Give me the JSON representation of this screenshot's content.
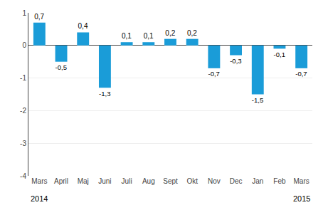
{
  "chart_data": {
    "type": "bar",
    "categories": [
      "Mars",
      "April",
      "Maj",
      "Juni",
      "Juli",
      "Aug",
      "Sept",
      "Okt",
      "Nov",
      "Dec",
      "Jan",
      "Feb",
      "Mars"
    ],
    "values": [
      0.7,
      -0.5,
      0.4,
      -1.3,
      0.1,
      0.1,
      0.2,
      0.2,
      -0.7,
      -0.3,
      -1.5,
      -0.1,
      -0.7
    ],
    "value_labels": [
      "0,7",
      "-0,5",
      "0,4",
      "-1,3",
      "0,1",
      "0,1",
      "0,2",
      "0,2",
      "-0,7",
      "-0,3",
      "-1,5",
      "-0,1",
      "-0,7"
    ],
    "data_labels": true,
    "color": "#1a9cd8",
    "ylim": [
      -4,
      1
    ],
    "yticks": [
      1,
      0,
      -1,
      -2,
      -3,
      -4
    ],
    "grid": true,
    "annotations": [
      {
        "text": "2014",
        "x": 0
      },
      {
        "text": "2015",
        "x": 12
      }
    ]
  }
}
